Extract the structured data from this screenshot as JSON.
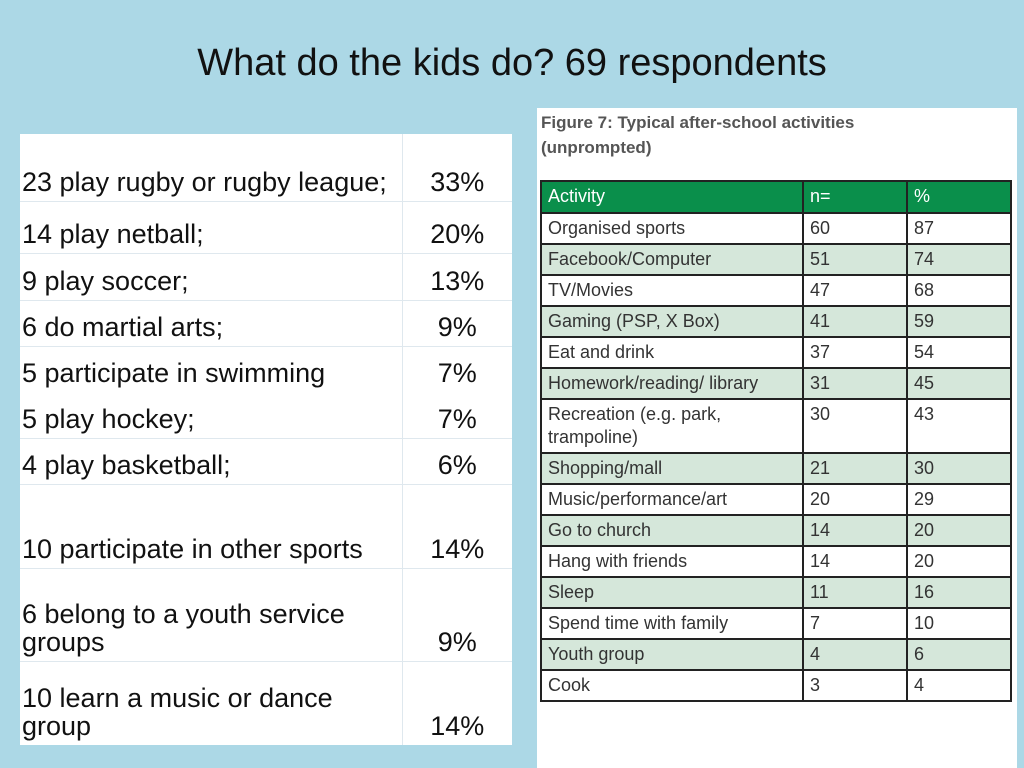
{
  "slide": {
    "title": "What do the kids do? 69 respondents"
  },
  "left_table": {
    "rows": [
      {
        "label": "23 play rugby or rugby league;",
        "pct": "33%"
      },
      {
        "label": "14 play netball;",
        "pct": "20%"
      },
      {
        "label": "9 play soccer;",
        "pct": "13%"
      },
      {
        "label": "6 do martial arts;",
        "pct": "9%"
      },
      {
        "label": "5 participate in swimming",
        "pct": "7%"
      },
      {
        "label": "5 play hockey;",
        "pct": "7%"
      },
      {
        "label": "4 play basketball;",
        "pct": "6%"
      },
      {
        "label": "10 participate in other sports",
        "pct": "14%"
      },
      {
        "label": "6 belong to a youth service groups",
        "pct": "9%"
      },
      {
        "label": "10 learn a music or dance group",
        "pct": "14%"
      }
    ]
  },
  "figure": {
    "caption": "Figure 7: Typical after-school activities (unprompted)",
    "headers": [
      "Activity",
      "n=",
      "%"
    ],
    "rows": [
      {
        "activity": "Organised sports",
        "n": "60",
        "pct": "87"
      },
      {
        "activity": "Facebook/Computer",
        "n": "51",
        "pct": "74"
      },
      {
        "activity": "TV/Movies",
        "n": "47",
        "pct": "68"
      },
      {
        "activity": "Gaming (PSP, X Box)",
        "n": "41",
        "pct": "59"
      },
      {
        "activity": "Eat and drink",
        "n": "37",
        "pct": "54"
      },
      {
        "activity": "Homework/reading/ library",
        "n": "31",
        "pct": "45"
      },
      {
        "activity": "Recreation (e.g. park, trampoline)",
        "n": "30",
        "pct": "43"
      },
      {
        "activity": "Shopping/mall",
        "n": "21",
        "pct": "30"
      },
      {
        "activity": "Music/performance/art",
        "n": "20",
        "pct": "29"
      },
      {
        "activity": "Go to church",
        "n": "14",
        "pct": "20"
      },
      {
        "activity": "Hang with friends",
        "n": "14",
        "pct": "20"
      },
      {
        "activity": "Sleep",
        "n": "11",
        "pct": "16"
      },
      {
        "activity": "Spend time with family",
        "n": "7",
        "pct": "10"
      },
      {
        "activity": "Youth group",
        "n": "4",
        "pct": "6"
      },
      {
        "activity": "Cook",
        "n": "3",
        "pct": "4"
      }
    ]
  }
}
